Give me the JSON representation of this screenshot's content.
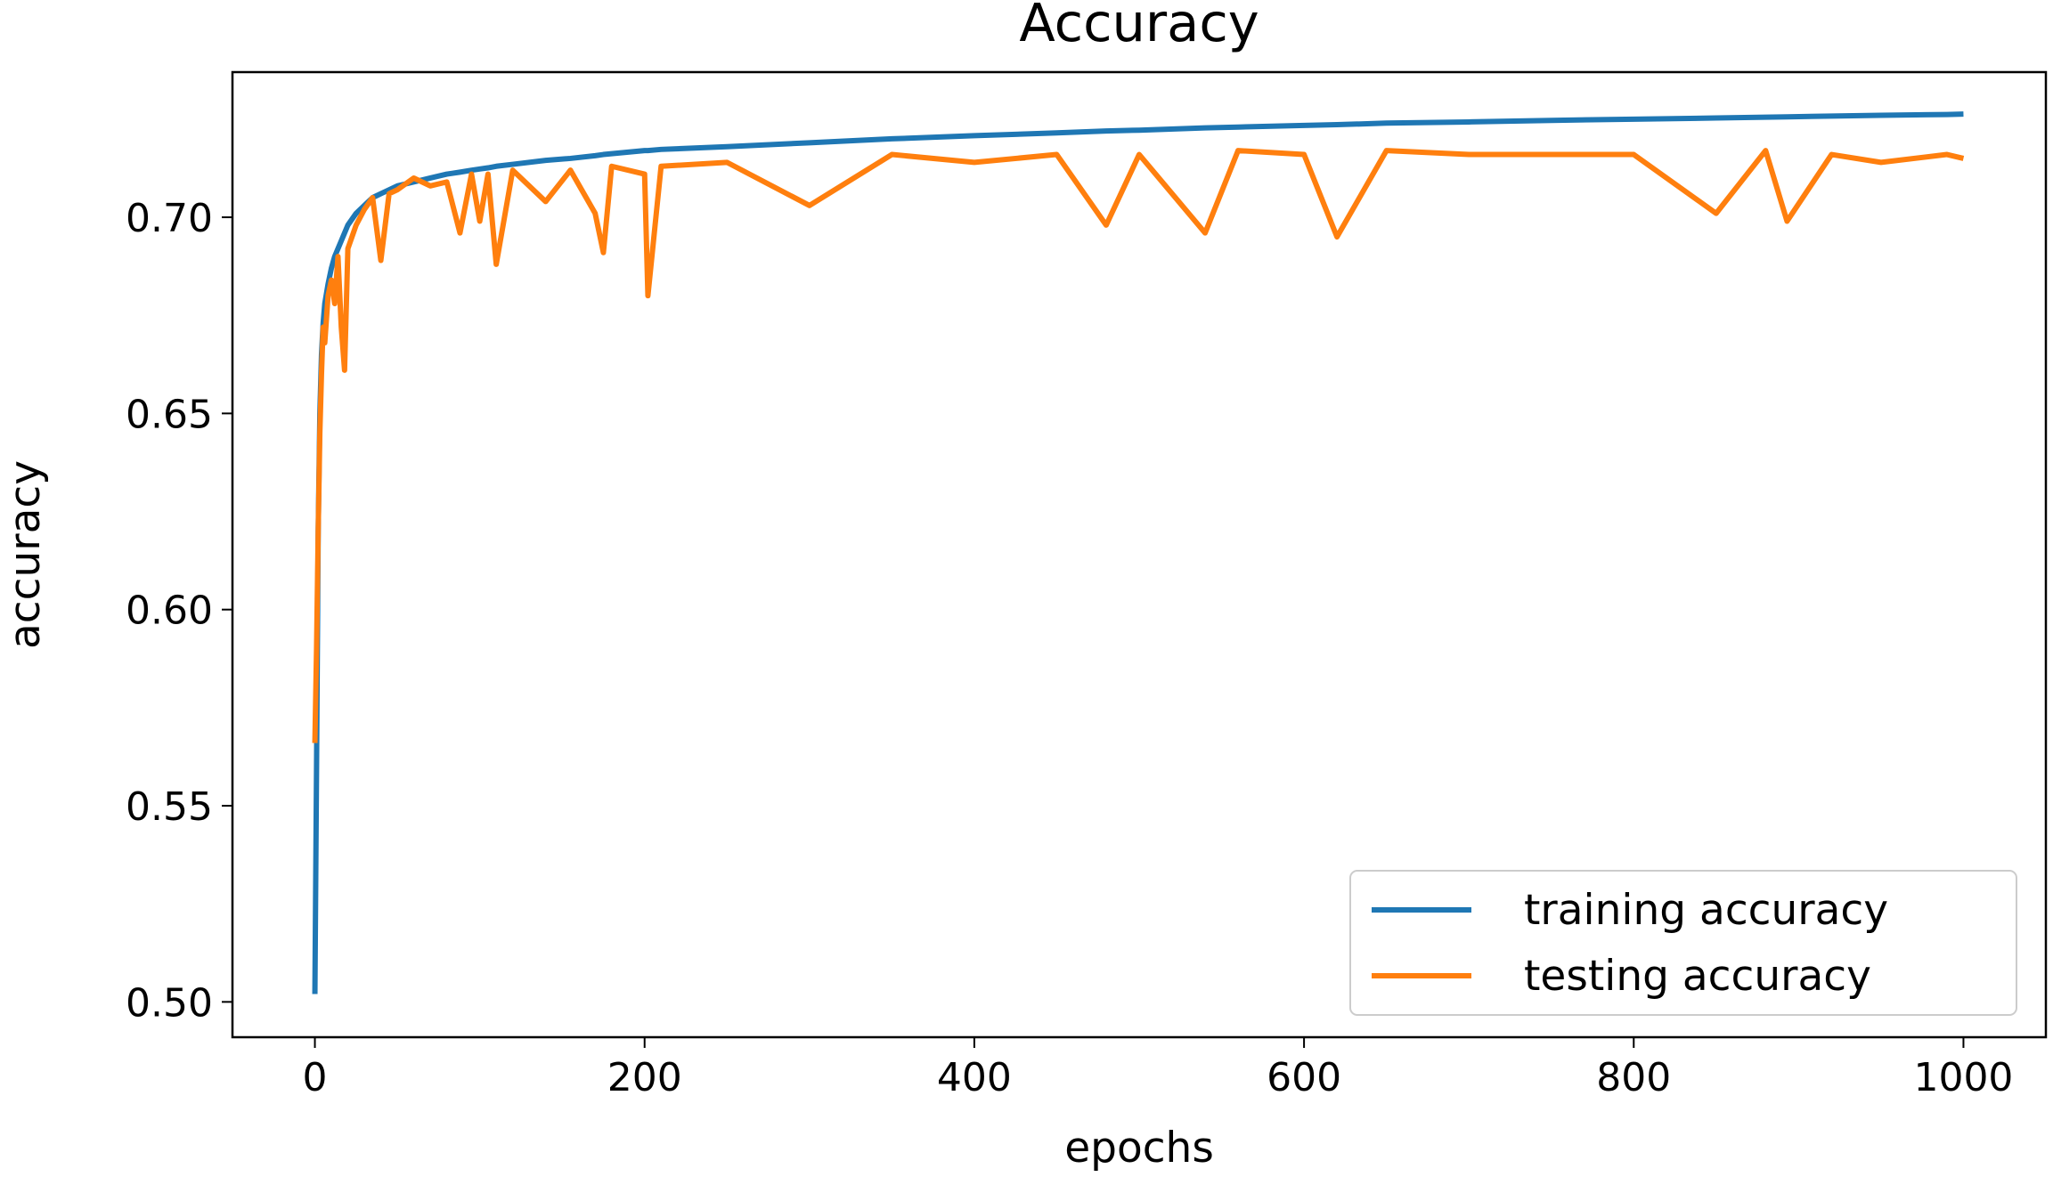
{
  "chart_data": {
    "type": "line",
    "title": "Accuracy",
    "x_label": "epochs",
    "y_label": "accuracy",
    "x": [
      0,
      1,
      2,
      3,
      4,
      5,
      6,
      8,
      10,
      12,
      14,
      16,
      18,
      20,
      25,
      30,
      35,
      40,
      45,
      50,
      60,
      70,
      80,
      88,
      95,
      100,
      105,
      110,
      120,
      140,
      155,
      170,
      175,
      180,
      200,
      202,
      210,
      250,
      300,
      350,
      400,
      450,
      480,
      500,
      540,
      560,
      600,
      620,
      650,
      700,
      750,
      800,
      850,
      880,
      893,
      920,
      950,
      990,
      1000
    ],
    "series": [
      {
        "name": "training accuracy",
        "color": "#1f77b4",
        "values": [
          0.502,
          0.56,
          0.62,
          0.65,
          0.665,
          0.673,
          0.678,
          0.683,
          0.687,
          0.69,
          0.692,
          0.694,
          0.696,
          0.698,
          0.701,
          0.703,
          0.705,
          0.706,
          0.707,
          0.708,
          0.709,
          0.71,
          0.711,
          0.7115,
          0.712,
          0.7123,
          0.7126,
          0.713,
          0.7135,
          0.7145,
          0.715,
          0.7157,
          0.716,
          0.7162,
          0.717,
          0.717,
          0.7173,
          0.718,
          0.719,
          0.72,
          0.7208,
          0.7215,
          0.722,
          0.7222,
          0.7228,
          0.723,
          0.7234,
          0.7236,
          0.724,
          0.7243,
          0.7247,
          0.725,
          0.7253,
          0.7255,
          0.7256,
          0.7258,
          0.726,
          0.7262,
          0.7263
        ]
      },
      {
        "name": "testing accuracy",
        "color": "#ff7f0e",
        "values": [
          0.566,
          0.59,
          0.62,
          0.645,
          0.66,
          0.672,
          0.668,
          0.68,
          0.684,
          0.678,
          0.69,
          0.672,
          0.661,
          0.692,
          0.698,
          0.702,
          0.705,
          0.689,
          0.706,
          0.707,
          0.71,
          0.708,
          0.709,
          0.696,
          0.711,
          0.699,
          0.711,
          0.688,
          0.712,
          0.704,
          0.712,
          0.701,
          0.691,
          0.713,
          0.711,
          0.68,
          0.713,
          0.714,
          0.703,
          0.716,
          0.714,
          0.716,
          0.698,
          0.716,
          0.696,
          0.717,
          0.716,
          0.695,
          0.717,
          0.716,
          0.716,
          0.716,
          0.701,
          0.717,
          0.699,
          0.716,
          0.714,
          0.716,
          0.715
        ]
      }
    ],
    "xlim": [
      -50,
      1050
    ],
    "ylim": [
      0.491,
      0.737
    ],
    "xticks": [
      0,
      200,
      400,
      600,
      800,
      1000
    ],
    "yticks": [
      {
        "value": 0.5,
        "label": "0.50"
      },
      {
        "value": 0.55,
        "label": "0.55"
      },
      {
        "value": 0.6,
        "label": "0.60"
      },
      {
        "value": 0.65,
        "label": "0.65"
      },
      {
        "value": 0.7,
        "label": "0.70"
      }
    ],
    "grid": false,
    "legend": "lower right"
  }
}
